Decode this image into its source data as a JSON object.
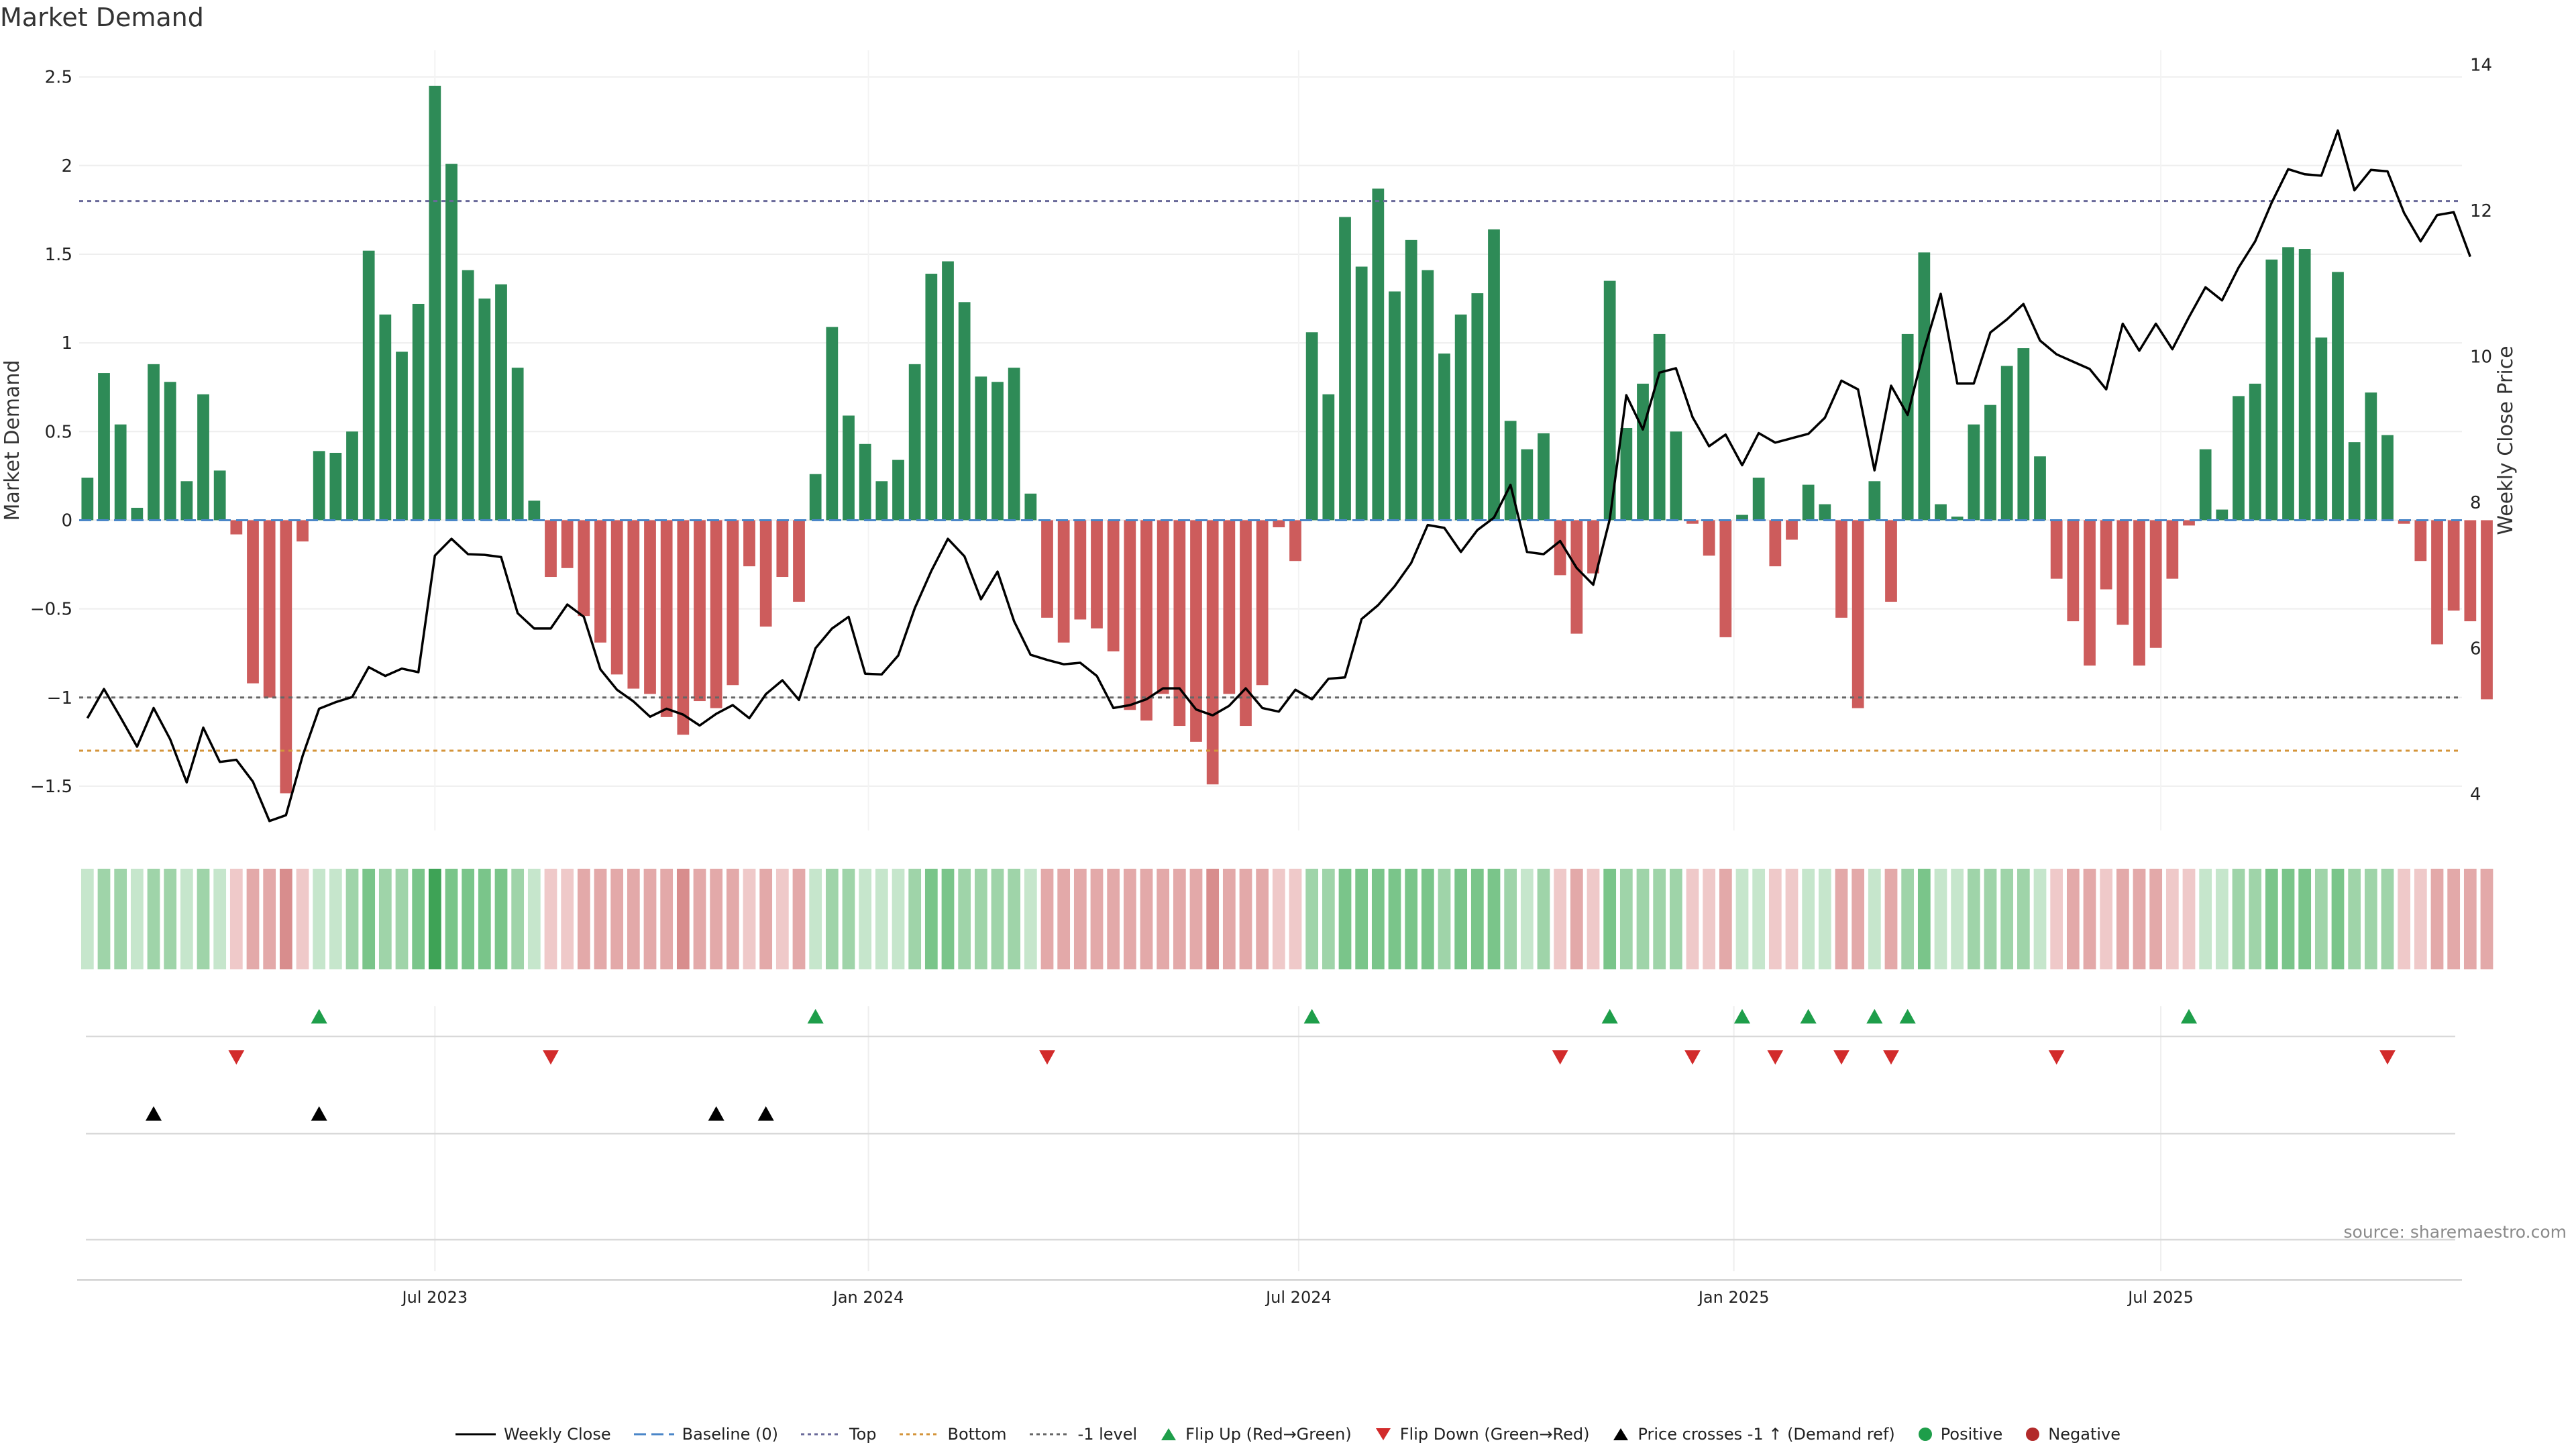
{
  "title": "Market Demand",
  "source": "source: sharemaestro.com",
  "chart_data": {
    "type": "bar",
    "title": "Market Demand",
    "ylabel": "Market Demand",
    "y2label": "Weekly Close Price",
    "ylim": [
      -1.75,
      2.65
    ],
    "y2lim": [
      3.5,
      14.2
    ],
    "yticks": [
      -1.5,
      -1,
      -0.5,
      0,
      0.5,
      1,
      1.5,
      2,
      2.5
    ],
    "ytick_labels": [
      "−1.5",
      "−1",
      "−0.5",
      "0",
      "0.5",
      "1",
      "1.5",
      "2",
      "2.5"
    ],
    "y2ticks": [
      4,
      6,
      8,
      10,
      12,
      14
    ],
    "y2tick_labels": [
      "4",
      "6",
      "8",
      "10",
      "12",
      "14"
    ],
    "x_start": "2023-01-01",
    "week_count": 144,
    "xticks": [
      {
        "label": "Jul 2023",
        "week": 21.5
      },
      {
        "label": "Jan 2024",
        "week": 47.7
      },
      {
        "label": "Jul 2024",
        "week": 73.7
      },
      {
        "label": "Jan 2025",
        "week": 100
      },
      {
        "label": "Jul 2025",
        "week": 125.8
      }
    ],
    "reference_lines": {
      "baseline": 0,
      "top": 1.8,
      "bottom": -1.3,
      "minus_one": -1
    },
    "demand": [
      0.24,
      0.83,
      0.54,
      0.07,
      0.88,
      0.78,
      0.22,
      0.71,
      0.28,
      -0.08,
      -0.92,
      -1.0,
      -1.54,
      -0.12,
      0.39,
      0.38,
      0.5,
      1.52,
      1.16,
      0.95,
      1.22,
      2.45,
      2.01,
      1.41,
      1.25,
      1.33,
      0.86,
      0.11,
      -0.32,
      -0.27,
      -0.54,
      -0.69,
      -0.87,
      -0.95,
      -0.98,
      -1.11,
      -1.21,
      -1.02,
      -1.06,
      -0.93,
      -0.26,
      -0.6,
      -0.32,
      -0.46,
      0.26,
      1.09,
      0.59,
      0.43,
      0.22,
      0.34,
      0.88,
      1.39,
      1.46,
      1.23,
      0.81,
      0.78,
      0.86,
      0.15,
      -0.55,
      -0.69,
      -0.56,
      -0.61,
      -0.74,
      -1.07,
      -1.13,
      -0.98,
      -1.16,
      -1.25,
      -1.49,
      -0.98,
      -1.16,
      -0.93,
      -0.04,
      -0.23,
      1.06,
      0.71,
      1.71,
      1.43,
      1.87,
      1.29,
      1.58,
      1.41,
      0.94,
      1.16,
      1.28,
      1.64,
      0.56,
      0.4,
      0.49,
      -0.31,
      -0.64,
      -0.3,
      1.35,
      0.52,
      0.77,
      1.05,
      0.5,
      -0.02,
      -0.2,
      -0.66,
      0.03,
      0.24,
      -0.26,
      -0.11,
      0.2,
      0.09,
      -0.55,
      -1.06,
      0.22,
      -0.46,
      1.05,
      1.51,
      0.09,
      0.02,
      0.54,
      0.65,
      0.87,
      0.97,
      0.36,
      -0.33,
      -0.57,
      -0.82,
      -0.39,
      -0.59,
      -0.82,
      -0.72,
      -0.33,
      -0.03,
      0.4,
      0.06,
      0.7,
      0.77,
      1.47,
      1.54,
      1.53,
      1.03,
      1.4,
      0.44,
      0.72,
      0.48,
      -0.02,
      -0.23,
      -0.7,
      -0.51,
      -0.57,
      -1.01
    ],
    "weekly_close": [
      5.04,
      5.44,
      5.05,
      4.65,
      5.18,
      4.75,
      4.16,
      4.91,
      4.44,
      4.47,
      4.17,
      3.63,
      3.71,
      4.52,
      5.17,
      5.26,
      5.33,
      5.74,
      5.62,
      5.72,
      5.67,
      7.27,
      7.5,
      7.29,
      7.28,
      7.25,
      6.48,
      6.27,
      6.27,
      6.6,
      6.43,
      5.71,
      5.43,
      5.27,
      5.06,
      5.17,
      5.09,
      4.94,
      5.1,
      5.22,
      5.04,
      5.37,
      5.56,
      5.29,
      6.0,
      6.27,
      6.43,
      5.65,
      5.64,
      5.9,
      6.55,
      7.06,
      7.5,
      7.26,
      6.67,
      7.05,
      6.37,
      5.91,
      5.84,
      5.78,
      5.8,
      5.62,
      5.18,
      5.22,
      5.3,
      5.45,
      5.45,
      5.16,
      5.08,
      5.21,
      5.45,
      5.18,
      5.13,
      5.43,
      5.3,
      5.58,
      5.6,
      6.4,
      6.59,
      6.85,
      7.17,
      7.69,
      7.65,
      7.32,
      7.62,
      7.79,
      8.24,
      7.32,
      7.29,
      7.47,
      7.1,
      6.87,
      7.77,
      9.47,
      9.0,
      9.78,
      9.84,
      9.17,
      8.77,
      8.93,
      8.51,
      8.95,
      8.82,
      8.88,
      8.94,
      9.16,
      9.67,
      9.55,
      8.44,
      9.6,
      9.2,
      10.1,
      10.86,
      9.63,
      9.63,
      10.33,
      10.51,
      10.72,
      10.22,
      10.03,
      9.93,
      9.83,
      9.55,
      10.45,
      10.08,
      10.45,
      10.1,
      10.54,
      10.95,
      10.77,
      11.22,
      11.58,
      12.11,
      12.57,
      12.5,
      12.48,
      13.1,
      12.28,
      12.56,
      12.54,
      11.97,
      11.58,
      11.94,
      11.98,
      11.37
    ],
    "shading_levels": [
      1,
      2,
      2,
      1,
      2,
      2,
      1,
      2,
      1,
      1,
      2,
      2,
      3,
      1,
      1,
      1,
      2,
      3,
      2,
      2,
      3,
      4,
      3,
      3,
      3,
      3,
      2,
      1,
      1,
      1,
      2,
      2,
      2,
      2,
      2,
      2,
      3,
      2,
      2,
      2,
      1,
      2,
      1,
      2,
      1,
      2,
      2,
      1,
      1,
      1,
      2,
      3,
      3,
      2,
      2,
      2,
      2,
      1,
      2,
      2,
      2,
      2,
      2,
      2,
      2,
      2,
      2,
      2,
      3,
      2,
      2,
      2,
      1,
      1,
      2,
      2,
      3,
      3,
      3,
      3,
      3,
      3,
      2,
      3,
      3,
      3,
      2,
      1,
      2,
      1,
      2,
      1,
      3,
      2,
      2,
      2,
      2,
      1,
      1,
      2,
      1,
      1,
      1,
      1,
      1,
      1,
      2,
      2,
      1,
      2,
      2,
      3,
      1,
      1,
      2,
      2,
      2,
      2,
      1,
      1,
      2,
      2,
      1,
      2,
      2,
      2,
      1,
      1,
      1,
      1,
      2,
      2,
      3,
      3,
      3,
      2,
      3,
      2,
      2,
      2,
      1,
      1,
      2,
      2,
      2,
      2
    ],
    "flip_up_weeks": [
      14,
      44,
      74,
      92,
      100,
      104,
      108,
      110,
      127
    ],
    "flip_down_weeks": [
      9,
      28,
      58,
      89,
      97,
      102,
      106,
      109,
      119,
      139
    ],
    "price_cross_weeks": [
      4,
      14,
      38,
      41
    ],
    "legend": [
      "Weekly Close",
      "Baseline (0)",
      "Top",
      "Bottom",
      "-1 level",
      "Flip Up (Red→Green)",
      "Flip Down (Green→Red)",
      "Price crosses -1 ↑ (Demand ref)",
      "Positive",
      "Negative"
    ],
    "colors": {
      "positive_bar": "#2e8b57",
      "negative_bar": "#cd5c5c",
      "close_line": "#000000",
      "baseline": "#4a86c8",
      "top": "#6a6a9a",
      "bottom": "#d4943a",
      "minus_one": "#666666",
      "flip_up": "#1e9e4a",
      "flip_down": "#d22b2b",
      "cross": "#000000",
      "positive_dot": "#1e9e4a",
      "negative_dot": "#b22a2a",
      "heat_positive": [
        "#c6e6cc",
        "#9fd4a9",
        "#7ac58a",
        "#3ea356"
      ],
      "heat_negative": [
        "#efc9c9",
        "#e3a9a9",
        "#d88d8d",
        "#cf7878"
      ],
      "grid": "#eeeeee",
      "axis_text": "#222222"
    }
  }
}
